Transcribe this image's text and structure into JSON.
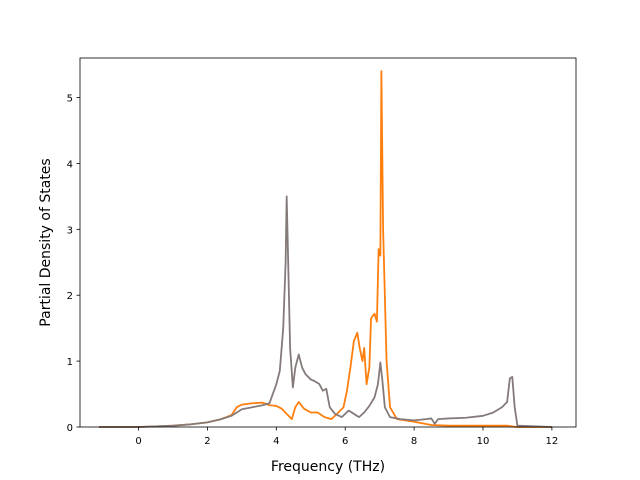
{
  "chart_data": {
    "type": "line",
    "title": "",
    "xlabel": "Frequency (THz)",
    "ylabel": "Partial Density of States",
    "xlim": [
      -1.7,
      12.7
    ],
    "ylim": [
      0,
      5.6
    ],
    "xticks": [
      0,
      2,
      4,
      6,
      8,
      10,
      12
    ],
    "yticks": [
      0,
      1,
      2,
      3,
      4,
      5
    ],
    "grid": false,
    "legend": "none",
    "series": [
      {
        "color": "#ff7f0e",
        "points": [
          [
            -1.15,
            0.0
          ],
          [
            0.0,
            0.0
          ],
          [
            0.5,
            0.01
          ],
          [
            1.0,
            0.02
          ],
          [
            1.5,
            0.04
          ],
          [
            2.0,
            0.07
          ],
          [
            2.4,
            0.12
          ],
          [
            2.7,
            0.18
          ],
          [
            2.85,
            0.3
          ],
          [
            3.0,
            0.34
          ],
          [
            3.3,
            0.36
          ],
          [
            3.6,
            0.37
          ],
          [
            3.8,
            0.33
          ],
          [
            4.0,
            0.32
          ],
          [
            4.15,
            0.28
          ],
          [
            4.3,
            0.2
          ],
          [
            4.45,
            0.12
          ],
          [
            4.55,
            0.3
          ],
          [
            4.65,
            0.38
          ],
          [
            4.8,
            0.28
          ],
          [
            5.0,
            0.22
          ],
          [
            5.2,
            0.22
          ],
          [
            5.4,
            0.15
          ],
          [
            5.6,
            0.12
          ],
          [
            5.8,
            0.22
          ],
          [
            5.95,
            0.3
          ],
          [
            6.05,
            0.55
          ],
          [
            6.15,
            0.9
          ],
          [
            6.25,
            1.3
          ],
          [
            6.35,
            1.43
          ],
          [
            6.42,
            1.2
          ],
          [
            6.5,
            1.0
          ],
          [
            6.55,
            1.2
          ],
          [
            6.62,
            0.65
          ],
          [
            6.7,
            0.9
          ],
          [
            6.75,
            1.65
          ],
          [
            6.85,
            1.72
          ],
          [
            6.92,
            1.6
          ],
          [
            6.97,
            2.7
          ],
          [
            7.02,
            2.6
          ],
          [
            7.05,
            5.4
          ],
          [
            7.1,
            3.0
          ],
          [
            7.2,
            1.0
          ],
          [
            7.3,
            0.3
          ],
          [
            7.5,
            0.12
          ],
          [
            8.0,
            0.08
          ],
          [
            8.5,
            0.03
          ],
          [
            9.0,
            0.02
          ],
          [
            10.0,
            0.02
          ],
          [
            10.7,
            0.02
          ],
          [
            10.95,
            0.0
          ],
          [
            12.0,
            0.0
          ]
        ]
      },
      {
        "color": "#857a7a",
        "points": [
          [
            -1.15,
            0.0
          ],
          [
            0.0,
            0.0
          ],
          [
            0.5,
            0.01
          ],
          [
            1.0,
            0.02
          ],
          [
            1.5,
            0.04
          ],
          [
            2.0,
            0.07
          ],
          [
            2.4,
            0.12
          ],
          [
            2.7,
            0.17
          ],
          [
            2.85,
            0.22
          ],
          [
            3.0,
            0.27
          ],
          [
            3.3,
            0.3
          ],
          [
            3.6,
            0.33
          ],
          [
            3.8,
            0.36
          ],
          [
            4.0,
            0.65
          ],
          [
            4.1,
            0.85
          ],
          [
            4.2,
            1.5
          ],
          [
            4.27,
            2.5
          ],
          [
            4.3,
            3.5
          ],
          [
            4.34,
            2.6
          ],
          [
            4.4,
            1.2
          ],
          [
            4.48,
            0.6
          ],
          [
            4.55,
            0.9
          ],
          [
            4.65,
            1.1
          ],
          [
            4.75,
            0.9
          ],
          [
            4.85,
            0.8
          ],
          [
            5.0,
            0.72
          ],
          [
            5.1,
            0.7
          ],
          [
            5.25,
            0.65
          ],
          [
            5.35,
            0.55
          ],
          [
            5.45,
            0.58
          ],
          [
            5.55,
            0.3
          ],
          [
            5.7,
            0.2
          ],
          [
            5.9,
            0.15
          ],
          [
            6.1,
            0.25
          ],
          [
            6.25,
            0.2
          ],
          [
            6.4,
            0.15
          ],
          [
            6.55,
            0.22
          ],
          [
            6.7,
            0.32
          ],
          [
            6.85,
            0.45
          ],
          [
            6.95,
            0.65
          ],
          [
            7.02,
            0.98
          ],
          [
            7.08,
            0.7
          ],
          [
            7.15,
            0.3
          ],
          [
            7.3,
            0.15
          ],
          [
            7.6,
            0.12
          ],
          [
            8.0,
            0.1
          ],
          [
            8.35,
            0.12
          ],
          [
            8.5,
            0.13
          ],
          [
            8.6,
            0.05
          ],
          [
            8.7,
            0.12
          ],
          [
            9.0,
            0.13
          ],
          [
            9.5,
            0.14
          ],
          [
            10.0,
            0.17
          ],
          [
            10.3,
            0.22
          ],
          [
            10.55,
            0.3
          ],
          [
            10.7,
            0.38
          ],
          [
            10.78,
            0.74
          ],
          [
            10.85,
            0.76
          ],
          [
            10.92,
            0.3
          ],
          [
            11.0,
            0.02
          ],
          [
            12.0,
            0.0
          ]
        ]
      }
    ]
  }
}
